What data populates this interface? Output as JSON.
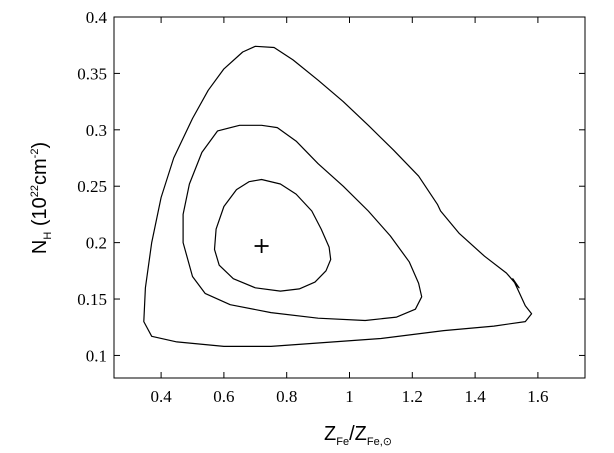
{
  "chart_data": {
    "type": "contour",
    "title": "",
    "xlabel": {
      "main": "Z",
      "sub1": "Fe",
      "slash": "/Z",
      "sub2": "Fe,⊙"
    },
    "ylabel": {
      "pre": "N",
      "sub": "H",
      "mid": " (10",
      "sup1": "22",
      "unit": "cm",
      "sup2": "-2",
      "post": ")"
    },
    "xlim": [
      0.25,
      1.75
    ],
    "ylim": [
      0.08,
      0.4
    ],
    "xticks": [
      {
        "v": 0.4,
        "label": "0.4"
      },
      {
        "v": 0.6,
        "label": "0.6"
      },
      {
        "v": 0.8,
        "label": "0.8"
      },
      {
        "v": 1.0,
        "label": "1"
      },
      {
        "v": 1.2,
        "label": "1.2"
      },
      {
        "v": 1.4,
        "label": "1.4"
      },
      {
        "v": 1.6,
        "label": "1.6"
      }
    ],
    "yticks": [
      {
        "v": 0.1,
        "label": "0.1"
      },
      {
        "v": 0.15,
        "label": "0.15"
      },
      {
        "v": 0.2,
        "label": "0.2"
      },
      {
        "v": 0.25,
        "label": "0.25"
      },
      {
        "v": 0.3,
        "label": "0.3"
      },
      {
        "v": 0.35,
        "label": "0.35"
      },
      {
        "v": 0.4,
        "label": "0.4"
      }
    ],
    "best_fit": {
      "x": 0.72,
      "y": 0.197
    },
    "contours": [
      {
        "name": "inner",
        "points": [
          [
            0.72,
            0.256
          ],
          [
            0.78,
            0.252
          ],
          [
            0.83,
            0.243
          ],
          [
            0.88,
            0.228
          ],
          [
            0.91,
            0.212
          ],
          [
            0.935,
            0.196
          ],
          [
            0.94,
            0.185
          ],
          [
            0.925,
            0.175
          ],
          [
            0.89,
            0.165
          ],
          [
            0.84,
            0.159
          ],
          [
            0.78,
            0.157
          ],
          [
            0.7,
            0.16
          ],
          [
            0.63,
            0.168
          ],
          [
            0.585,
            0.18
          ],
          [
            0.57,
            0.194
          ],
          [
            0.575,
            0.212
          ],
          [
            0.6,
            0.232
          ],
          [
            0.64,
            0.247
          ],
          [
            0.68,
            0.254
          ]
        ]
      },
      {
        "name": "middle",
        "points": [
          [
            0.58,
            0.299
          ],
          [
            0.65,
            0.304
          ],
          [
            0.72,
            0.304
          ],
          [
            0.77,
            0.302
          ],
          [
            0.83,
            0.29
          ],
          [
            0.9,
            0.27
          ],
          [
            0.98,
            0.25
          ],
          [
            1.06,
            0.228
          ],
          [
            1.13,
            0.206
          ],
          [
            1.19,
            0.183
          ],
          [
            1.22,
            0.164
          ],
          [
            1.23,
            0.152
          ],
          [
            1.21,
            0.141
          ],
          [
            1.15,
            0.134
          ],
          [
            1.05,
            0.131
          ],
          [
            0.9,
            0.133
          ],
          [
            0.75,
            0.138
          ],
          [
            0.62,
            0.145
          ],
          [
            0.54,
            0.155
          ],
          [
            0.5,
            0.17
          ],
          [
            0.47,
            0.2
          ],
          [
            0.47,
            0.225
          ],
          [
            0.49,
            0.252
          ],
          [
            0.53,
            0.28
          ]
        ]
      },
      {
        "name": "outer",
        "points": [
          [
            0.6,
            0.354
          ],
          [
            0.66,
            0.369
          ],
          [
            0.7,
            0.374
          ],
          [
            0.76,
            0.373
          ],
          [
            0.82,
            0.362
          ],
          [
            0.9,
            0.344
          ],
          [
            0.98,
            0.325
          ],
          [
            1.06,
            0.304
          ],
          [
            1.14,
            0.282
          ],
          [
            1.22,
            0.259
          ],
          [
            1.28,
            0.234
          ],
          [
            1.29,
            0.228
          ],
          [
            1.35,
            0.208
          ],
          [
            1.43,
            0.188
          ],
          [
            1.5,
            0.173
          ],
          [
            1.54,
            0.16
          ],
          [
            1.52,
            0.168
          ],
          [
            1.54,
            0.156
          ],
          [
            1.56,
            0.144
          ],
          [
            1.58,
            0.137
          ],
          [
            1.56,
            0.13
          ],
          [
            1.46,
            0.126
          ],
          [
            1.3,
            0.122
          ],
          [
            1.1,
            0.115
          ],
          [
            0.9,
            0.111
          ],
          [
            0.75,
            0.108
          ],
          [
            0.6,
            0.108
          ],
          [
            0.45,
            0.112
          ],
          [
            0.37,
            0.117
          ],
          [
            0.345,
            0.13
          ],
          [
            0.35,
            0.16
          ],
          [
            0.37,
            0.2
          ],
          [
            0.4,
            0.24
          ],
          [
            0.44,
            0.275
          ],
          [
            0.5,
            0.31
          ],
          [
            0.55,
            0.335
          ]
        ]
      }
    ]
  }
}
